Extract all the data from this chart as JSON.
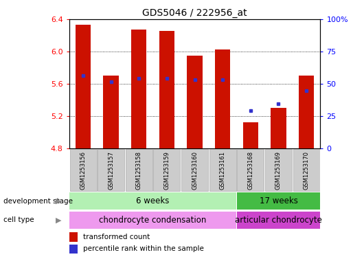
{
  "title": "GDS5046 / 222956_at",
  "samples": [
    "GSM1253156",
    "GSM1253157",
    "GSM1253158",
    "GSM1253159",
    "GSM1253160",
    "GSM1253161",
    "GSM1253168",
    "GSM1253169",
    "GSM1253170"
  ],
  "bar_values": [
    6.33,
    5.7,
    6.27,
    6.25,
    5.95,
    6.02,
    5.12,
    5.3,
    5.7
  ],
  "bar_base": 4.8,
  "percentile_values": [
    5.7,
    5.62,
    5.67,
    5.67,
    5.65,
    5.65,
    5.27,
    5.35,
    5.51
  ],
  "ylim": [
    4.8,
    6.4
  ],
  "yticks": [
    4.8,
    5.2,
    5.6,
    6.0,
    6.4
  ],
  "right_yticks": [
    0,
    25,
    50,
    75,
    100
  ],
  "bar_color": "#cc1100",
  "percentile_color": "#3333cc",
  "dev_stage_6wk_color": "#b3f0b3",
  "dev_stage_17wk_color": "#44bb44",
  "cell_type_chondro_color": "#ee99ee",
  "cell_type_articular_color": "#cc44cc",
  "dev_stage_label": "development stage",
  "cell_type_label": "cell type",
  "dev_6wk_text": "6 weeks",
  "dev_17wk_text": "17 weeks",
  "cell_chondro_text": "chondrocyte condensation",
  "cell_articular_text": "articular chondrocyte",
  "legend_bar_label": "transformed count",
  "legend_pct_label": "percentile rank within the sample",
  "n_6wk": 6,
  "n_total": 9,
  "bar_width": 0.55,
  "label_box_color": "#cccccc",
  "label_box_edgecolor": "#aaaaaa"
}
